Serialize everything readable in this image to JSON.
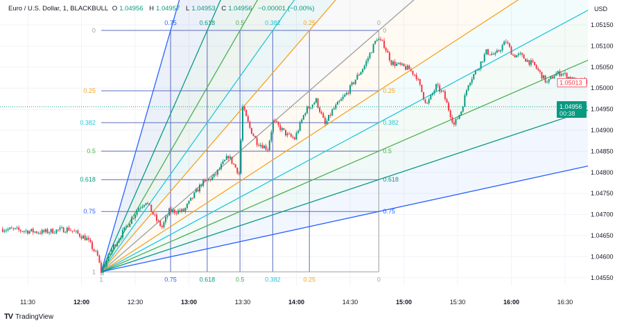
{
  "header": {
    "symbol": "Euro / U.S. Dollar, 1, BLACKBULL",
    "open_label": "O",
    "open": "1.04956",
    "high_label": "H",
    "high": "1.04957",
    "low_label": "L",
    "low": "1.04953",
    "close_label": "C",
    "close": "1.04956",
    "change": "−0.00001 (−0.00%)"
  },
  "branding": {
    "name": "TradingView",
    "logo_icon": "tradingview-logo-icon"
  },
  "chart_data": {
    "type": "candlestick",
    "currency": "USD",
    "y_ticks": [
      "1.05150",
      "1.05100",
      "1.05050",
      "1.05000",
      "1.04950",
      "1.04900",
      "1.04850",
      "1.04800",
      "1.04750",
      "1.04700",
      "1.04650",
      "1.04600",
      "1.04550"
    ],
    "x_ticks": [
      {
        "label": "11:30",
        "bold": false
      },
      {
        "label": "12:00",
        "bold": true
      },
      {
        "label": "12:30",
        "bold": false
      },
      {
        "label": "13:00",
        "bold": true
      },
      {
        "label": "13:30",
        "bold": false
      },
      {
        "label": "14:00",
        "bold": true
      },
      {
        "label": "14:30",
        "bold": false
      },
      {
        "label": "15:00",
        "bold": true
      },
      {
        "label": "15:30",
        "bold": false
      },
      {
        "label": "16:00",
        "bold": true
      },
      {
        "label": "16:30",
        "bold": false
      }
    ],
    "price_path": [
      [
        "11:16",
        1.04666
      ],
      [
        "11:38",
        1.04658
      ],
      [
        "11:53",
        1.04666
      ],
      [
        "12:03",
        1.04642
      ],
      [
        "12:09",
        1.04601
      ],
      [
        "12:11",
        1.04564
      ],
      [
        "12:18",
        1.04625
      ],
      [
        "12:32",
        1.04716
      ],
      [
        "12:36",
        1.04732
      ],
      [
        "12:42",
        1.04686
      ],
      [
        "12:45",
        1.0467
      ],
      [
        "12:49",
        1.04708
      ],
      [
        "12:57",
        1.04708
      ],
      [
        "13:07",
        1.04773
      ],
      [
        "13:14",
        1.0479
      ],
      [
        "13:22",
        1.04839
      ],
      [
        "13:28",
        1.04798
      ],
      [
        "13:30",
        1.04954
      ],
      [
        "13:34",
        1.04905
      ],
      [
        "13:38",
        1.04872
      ],
      [
        "13:44",
        1.04856
      ],
      [
        "13:47",
        1.04921
      ],
      [
        "13:51",
        1.04905
      ],
      [
        "13:55",
        1.04888
      ],
      [
        "13:59",
        1.0488
      ],
      [
        "14:05",
        1.04946
      ],
      [
        "14:11",
        1.04971
      ],
      [
        "14:16",
        1.04913
      ],
      [
        "14:20",
        1.04946
      ],
      [
        "14:28",
        1.04987
      ],
      [
        "14:34",
        1.05028
      ],
      [
        "14:38",
        1.05053
      ],
      [
        "14:45",
        1.05119
      ],
      [
        "14:49",
        1.05102
      ],
      [
        "14:53",
        1.05061
      ],
      [
        "15:03",
        1.05045
      ],
      [
        "15:07",
        1.05028
      ],
      [
        "15:11",
        1.04979
      ],
      [
        "15:13",
        1.04962
      ],
      [
        "15:18",
        1.05004
      ],
      [
        "15:22",
        1.04987
      ],
      [
        "15:28",
        1.04913
      ],
      [
        "15:32",
        1.04946
      ],
      [
        "15:36",
        1.05012
      ],
      [
        "15:42",
        1.05053
      ],
      [
        "15:46",
        1.05086
      ],
      [
        "15:51",
        1.05078
      ],
      [
        "15:57",
        1.05111
      ],
      [
        "16:01",
        1.05078
      ],
      [
        "16:05",
        1.05078
      ],
      [
        "16:13",
        1.05053
      ],
      [
        "16:20",
        1.05012
      ],
      [
        "16:24",
        1.05032
      ],
      [
        "16:28",
        1.05037
      ],
      [
        "16:36",
        1.05015
      ],
      [
        "16:42",
        1.05015
      ]
    ],
    "last_price": {
      "value": "1.04956",
      "countdown": "00:38",
      "color": "#089981"
    },
    "marker_price": {
      "value": "1.05013",
      "color": "#f23645"
    },
    "up_color": "#089981",
    "down_color": "#f23645",
    "fib_speed_fan": {
      "start": {
        "time": "12:11",
        "price": 1.04564
      },
      "end": {
        "time": "14:46",
        "price": 1.05137
      },
      "levels": [
        {
          "value": 0,
          "label": "0",
          "color": "#9e9e9e"
        },
        {
          "value": 0.25,
          "label": "0.25",
          "color": "#f7a21b"
        },
        {
          "value": 0.382,
          "label": "0.382",
          "color": "#26c6da"
        },
        {
          "value": 0.5,
          "label": "0.5",
          "color": "#4caf50"
        },
        {
          "value": 0.618,
          "label": "0.618",
          "color": "#089981"
        },
        {
          "value": 0.75,
          "label": "0.75",
          "color": "#2962ff"
        },
        {
          "value": 1,
          "label": "1",
          "color": "#9e9e9e"
        }
      ],
      "grid_color": "#5b6bbf"
    }
  }
}
